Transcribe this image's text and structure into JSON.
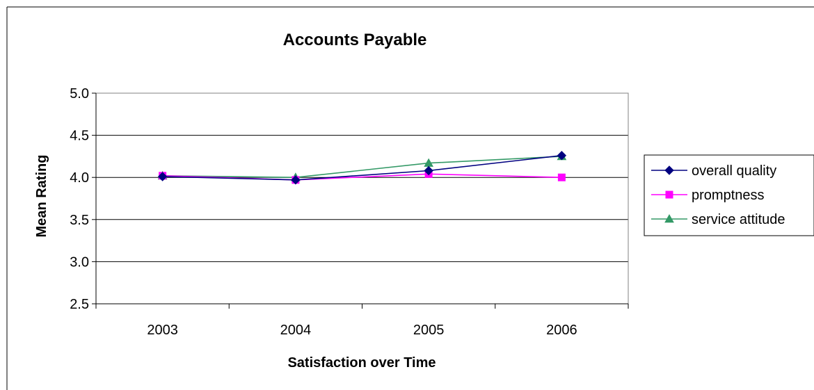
{
  "chart_data": {
    "type": "line",
    "title": "Accounts Payable",
    "xlabel": "Satisfaction over Time",
    "ylabel": "Mean Rating",
    "categories": [
      "2003",
      "2004",
      "2005",
      "2006"
    ],
    "ylim": [
      2.5,
      5.0
    ],
    "ytick_step": 0.5,
    "ytick_labels": [
      "2.5",
      "3.0",
      "3.5",
      "4.0",
      "4.5",
      "5.0"
    ],
    "grid": true,
    "legend_position": "right",
    "series": [
      {
        "name": "overall quality",
        "values": [
          4.01,
          3.97,
          4.08,
          4.26
        ],
        "color": "#000080",
        "marker": "diamond"
      },
      {
        "name": "promptness",
        "values": [
          4.02,
          3.97,
          4.04,
          4.0
        ],
        "color": "#FF00FF",
        "marker": "square"
      },
      {
        "name": "service attitude",
        "values": [
          4.02,
          4.0,
          4.17,
          4.25
        ],
        "color": "#339966",
        "marker": "triangle"
      }
    ]
  }
}
